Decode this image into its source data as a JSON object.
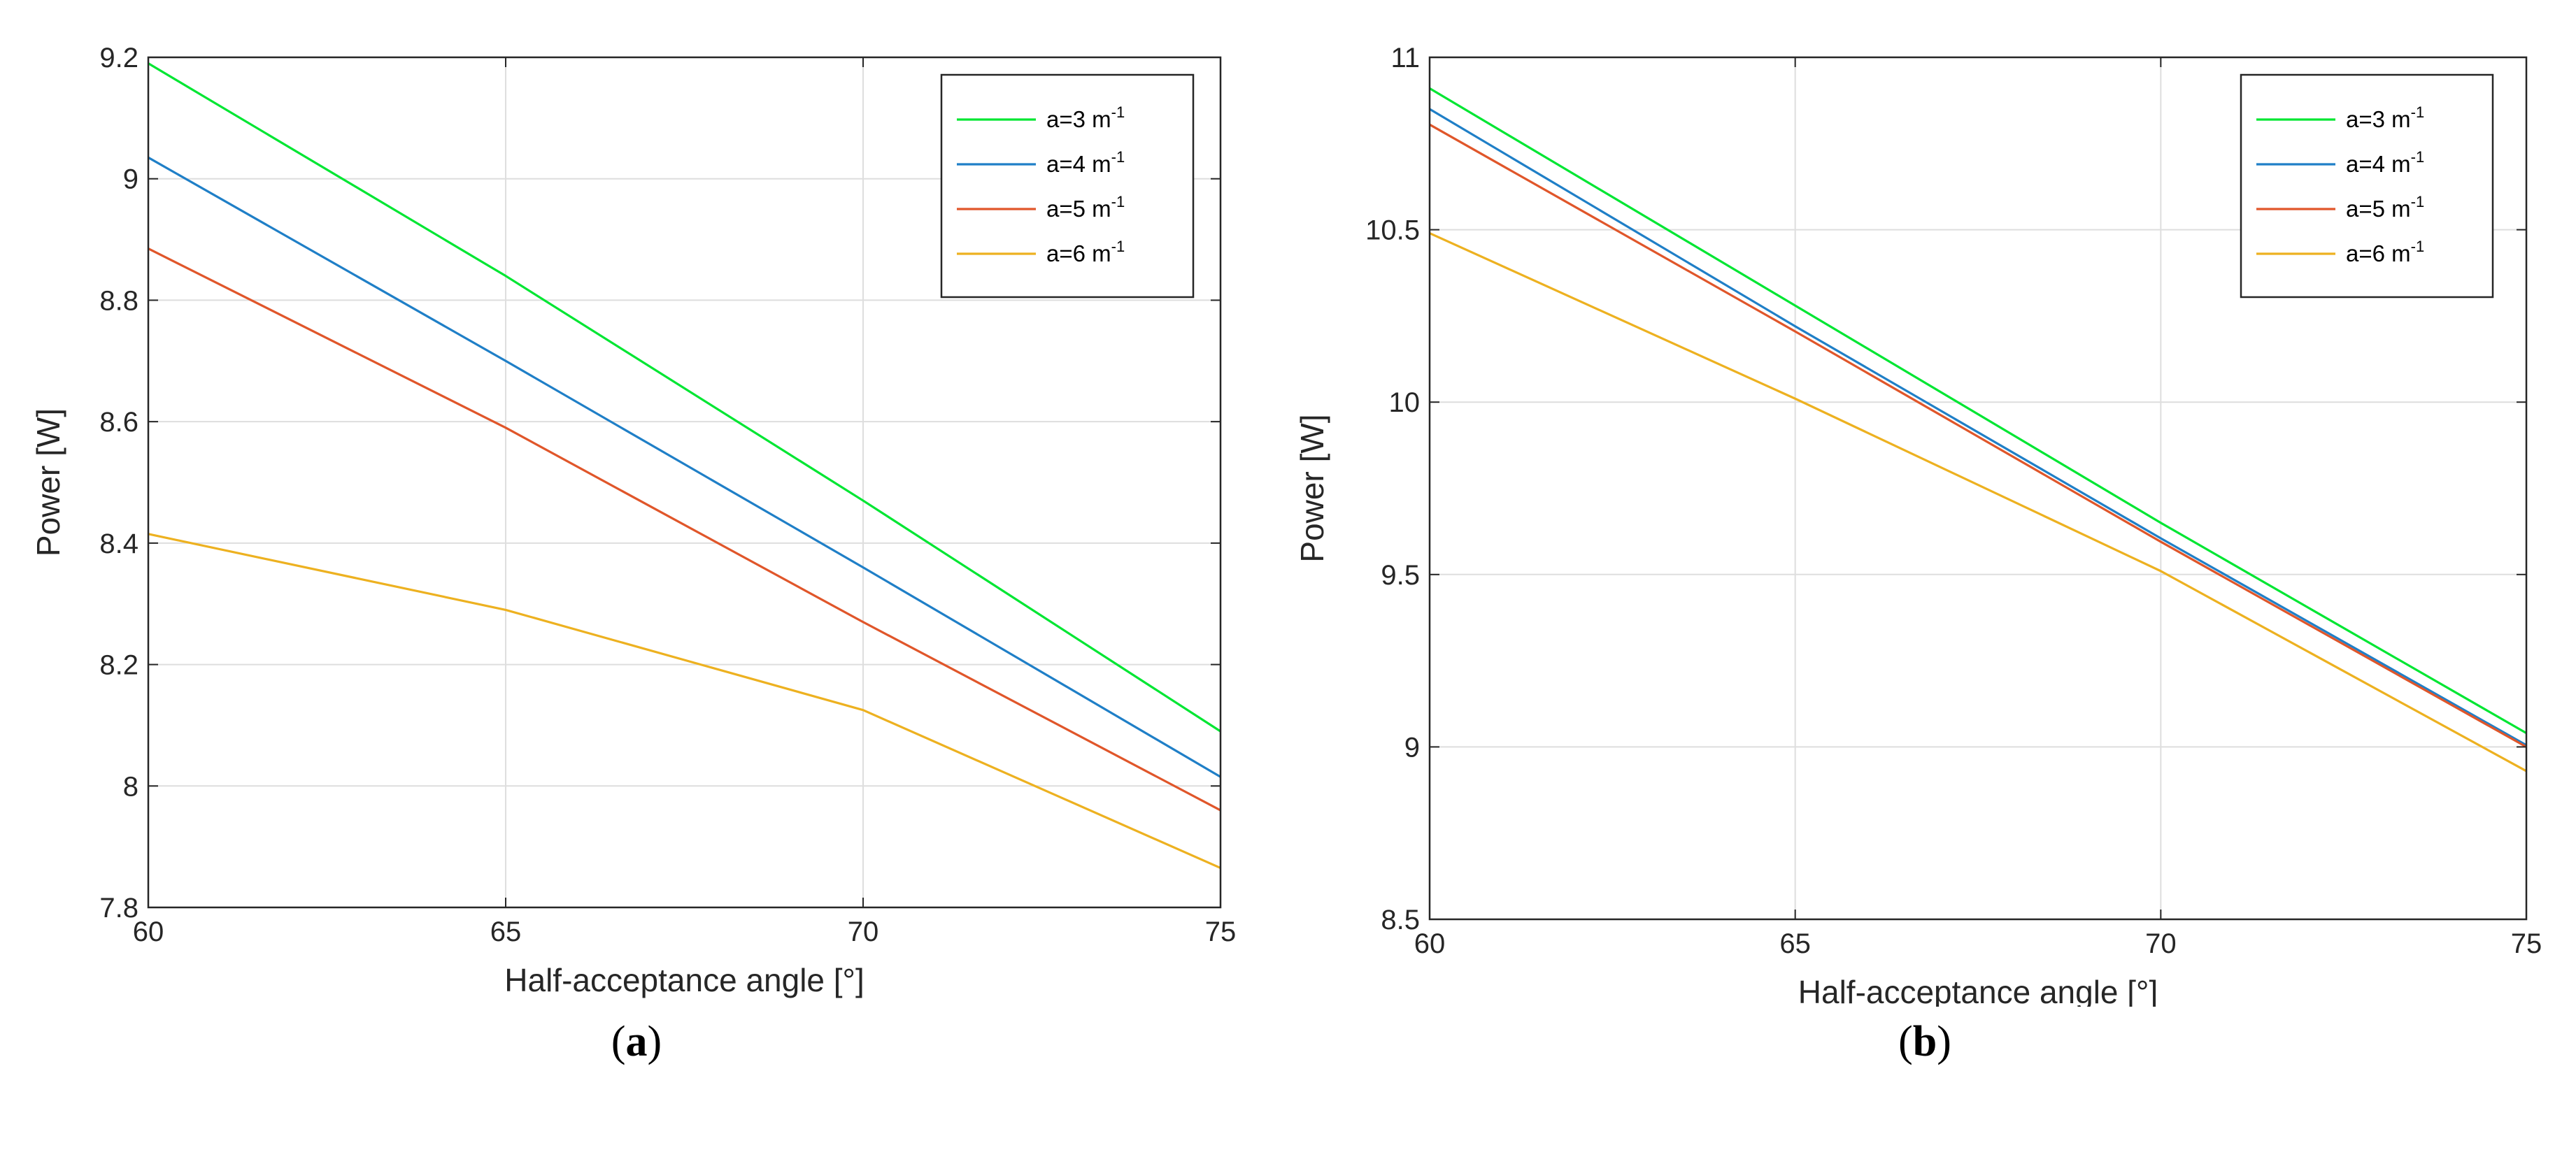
{
  "chart_data": [
    {
      "type": "line",
      "panel": "a",
      "caption_open": "(",
      "caption_letter": "a",
      "caption_close": ")",
      "xlabel": "Half-acceptance angle [°]",
      "ylabel": "Power [W]",
      "xlim": [
        60,
        75
      ],
      "ylim": [
        7.8,
        9.2
      ],
      "xticks": [
        60,
        65,
        70,
        75
      ],
      "xtick_labels": [
        "60",
        "65",
        "70",
        "75"
      ],
      "yticks": [
        7.8,
        8.0,
        8.2,
        8.4,
        8.6,
        8.8,
        9.0,
        9.2
      ],
      "ytick_labels": [
        "7.8",
        "8",
        "8.2",
        "8.4",
        "8.6",
        "8.8",
        "9",
        "9.2"
      ],
      "grid": true,
      "legend_position": "top-right",
      "x": [
        60,
        65,
        70,
        75
      ],
      "series": [
        {
          "name": "a=3 m",
          "superscript": "-1",
          "color": "#00e632",
          "values": [
            9.19,
            8.84,
            8.47,
            8.09
          ]
        },
        {
          "name": "a=4 m",
          "superscript": "-1",
          "color": "#1f7fc7",
          "values": [
            9.035,
            8.7,
            8.36,
            8.015
          ]
        },
        {
          "name": "a=5 m",
          "superscript": "-1",
          "color": "#e0562a",
          "values": [
            8.885,
            8.59,
            8.27,
            7.96
          ]
        },
        {
          "name": "a=6 m",
          "superscript": "-1",
          "color": "#edb120",
          "values": [
            8.415,
            8.29,
            8.125,
            7.865
          ]
        }
      ]
    },
    {
      "type": "line",
      "panel": "b",
      "caption_open": "(",
      "caption_letter": "b",
      "caption_close": ")",
      "xlabel": "Half-acceptance angle [°]",
      "ylabel": "Power [W]",
      "xlim": [
        60,
        75
      ],
      "ylim": [
        8.5,
        11.0
      ],
      "xticks": [
        60,
        65,
        70,
        75
      ],
      "xtick_labels": [
        "60",
        "65",
        "70",
        "75"
      ],
      "yticks": [
        8.5,
        9.0,
        9.5,
        10.0,
        10.5,
        11.0
      ],
      "ytick_labels": [
        "8.5",
        "9",
        "9.5",
        "10",
        "10.5",
        "11"
      ],
      "grid": true,
      "legend_position": "top-right",
      "x": [
        60,
        65,
        70,
        75
      ],
      "series": [
        {
          "name": "a=3 m",
          "superscript": "-1",
          "color": "#00e632",
          "values": [
            10.91,
            10.28,
            9.65,
            9.04
          ]
        },
        {
          "name": "a=4 m",
          "superscript": "-1",
          "color": "#1f7fc7",
          "values": [
            10.85,
            10.22,
            9.605,
            9.005
          ]
        },
        {
          "name": "a=5 m",
          "superscript": "-1",
          "color": "#e0562a",
          "values": [
            10.805,
            10.205,
            9.595,
            9.0
          ]
        },
        {
          "name": "a=6 m",
          "superscript": "-1",
          "color": "#edb120",
          "values": [
            10.49,
            10.01,
            9.51,
            8.93
          ]
        }
      ]
    }
  ]
}
